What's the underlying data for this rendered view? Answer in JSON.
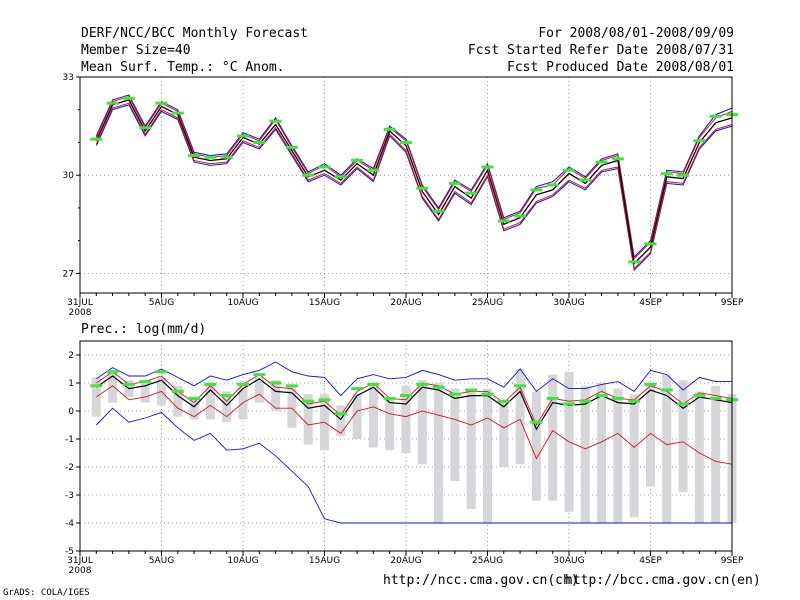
{
  "header": {
    "title": "DERF/NCC/BCC Monthly Forecast",
    "member_size": "Member Size=40",
    "variable": "Mean Surf. Temp.: °C Anom.",
    "period": "For 2008/08/01-2008/09/09",
    "started": "Fcst Started Refer Date 2008/07/31",
    "produced": "Fcst Produced Date 2008/08/01"
  },
  "footer": {
    "url_ncc": "http://ncc.cma.gov.cn(ch)",
    "url_bcc": "http://bcc.cma.gov.cn(en)",
    "credit": "GrADS: COLA/IGES"
  },
  "x_ticks": [
    {
      "day": 0,
      "label": "31JUL",
      "sub": "2008"
    },
    {
      "day": 5,
      "label": "5AUG"
    },
    {
      "day": 10,
      "label": "10AUG"
    },
    {
      "day": 15,
      "label": "15AUG"
    },
    {
      "day": 20,
      "label": "20AUG"
    },
    {
      "day": 25,
      "label": "25AUG"
    },
    {
      "day": 30,
      "label": "30AUG"
    },
    {
      "day": 35,
      "label": "4SEP"
    },
    {
      "day": 40,
      "label": "9SEP"
    }
  ],
  "colors": {
    "bar": "#d6d6da",
    "green": "#3ce63c",
    "mean": "#000000",
    "member": "#d01818",
    "spread": "#1010d8",
    "grid": "#888888"
  },
  "chart_data": [
    {
      "type": "line",
      "title": "Mean Surf. Temp.: °C Anom.",
      "xlim": [
        0,
        40
      ],
      "ylim": [
        26.4,
        33
      ],
      "yticks": [
        27,
        30,
        33
      ],
      "x": [
        1,
        2,
        3,
        4,
        5,
        6,
        7,
        8,
        9,
        10,
        11,
        12,
        13,
        14,
        15,
        16,
        17,
        18,
        19,
        20,
        21,
        22,
        23,
        24,
        25,
        26,
        27,
        28,
        29,
        30,
        31,
        32,
        33,
        34,
        35,
        36,
        37,
        38,
        39,
        40
      ],
      "green": [
        31.1,
        32.2,
        32.35,
        31.45,
        32.2,
        31.9,
        30.6,
        30.55,
        30.55,
        31.2,
        31.0,
        31.65,
        30.85,
        30.0,
        30.25,
        29.95,
        30.45,
        30.15,
        31.4,
        31.0,
        29.6,
        28.9,
        29.75,
        29.45,
        30.25,
        28.6,
        28.75,
        29.55,
        29.7,
        30.15,
        29.85,
        30.4,
        30.5,
        27.35,
        27.9,
        30.05,
        30.0,
        31.05,
        31.8,
        31.85
      ],
      "series": [
        {
          "name": "mean",
          "values": [
            31.05,
            32.15,
            32.3,
            31.35,
            32.1,
            31.85,
            30.55,
            30.45,
            30.5,
            31.15,
            30.95,
            31.55,
            30.75,
            29.95,
            30.15,
            29.85,
            30.35,
            30.0,
            31.35,
            30.9,
            29.5,
            28.8,
            29.65,
            29.3,
            30.15,
            28.5,
            28.7,
            29.4,
            29.55,
            30.05,
            29.75,
            30.3,
            30.45,
            27.3,
            27.8,
            29.95,
            29.9,
            31.0,
            31.6,
            31.75
          ]
        },
        {
          "name": "upper",
          "values": [
            31.15,
            32.25,
            32.4,
            31.45,
            32.2,
            31.95,
            30.65,
            30.55,
            30.6,
            31.25,
            31.05,
            31.7,
            30.85,
            30.05,
            30.3,
            29.95,
            30.45,
            30.15,
            31.45,
            31.05,
            29.65,
            28.95,
            29.8,
            29.5,
            30.3,
            28.65,
            28.85,
            29.6,
            29.7,
            30.2,
            29.9,
            30.45,
            30.6,
            27.45,
            27.95,
            30.1,
            30.05,
            31.15,
            31.75,
            31.95
          ]
        },
        {
          "name": "lower",
          "values": [
            30.95,
            32.05,
            32.2,
            31.25,
            32.0,
            31.75,
            30.45,
            30.35,
            30.4,
            31.05,
            30.85,
            31.45,
            30.65,
            29.85,
            30.05,
            29.75,
            30.25,
            29.85,
            31.25,
            30.75,
            29.35,
            28.65,
            29.5,
            29.15,
            30.0,
            28.35,
            28.55,
            29.2,
            29.4,
            29.85,
            29.6,
            30.15,
            30.25,
            27.15,
            27.65,
            29.8,
            29.75,
            30.85,
            31.4,
            31.55
          ]
        },
        {
          "name": "max",
          "values": [
            31.2,
            32.3,
            32.45,
            31.5,
            32.25,
            32.0,
            30.7,
            30.6,
            30.65,
            31.3,
            31.1,
            31.75,
            30.9,
            30.1,
            30.35,
            30.0,
            30.5,
            30.2,
            31.5,
            31.1,
            29.7,
            29.0,
            29.85,
            29.55,
            30.35,
            28.7,
            28.9,
            29.65,
            29.8,
            30.25,
            29.95,
            30.5,
            30.65,
            27.5,
            28.0,
            30.15,
            30.1,
            31.2,
            31.85,
            32.05
          ]
        },
        {
          "name": "min",
          "values": [
            30.9,
            32.0,
            32.15,
            31.2,
            31.95,
            31.7,
            30.4,
            30.3,
            30.35,
            31.0,
            30.8,
            31.4,
            30.6,
            29.8,
            30.0,
            29.7,
            30.2,
            29.8,
            31.2,
            30.7,
            29.3,
            28.6,
            29.45,
            29.1,
            29.95,
            28.3,
            28.5,
            29.15,
            29.35,
            29.8,
            29.55,
            30.1,
            30.2,
            27.1,
            27.6,
            29.75,
            29.7,
            30.8,
            31.35,
            31.5
          ]
        }
      ]
    },
    {
      "type": "line",
      "title": "Prec.: log(mm/d)",
      "xlim": [
        0,
        40
      ],
      "ylim": [
        -5,
        2.5
      ],
      "yticks": [
        -5,
        -4,
        -3,
        -2,
        -1,
        0,
        1,
        2
      ],
      "x": [
        1,
        2,
        3,
        4,
        5,
        6,
        7,
        8,
        9,
        10,
        11,
        12,
        13,
        14,
        15,
        16,
        17,
        18,
        19,
        20,
        21,
        22,
        23,
        24,
        25,
        26,
        27,
        28,
        29,
        30,
        31,
        32,
        33,
        34,
        35,
        36,
        37,
        38,
        39,
        40
      ],
      "bars": [
        [
          -0.2,
          1.2
        ],
        [
          0.3,
          1.4
        ],
        [
          0.5,
          1.1
        ],
        [
          0.3,
          1.0
        ],
        [
          0.2,
          1.2
        ],
        [
          -0.2,
          0.9
        ],
        [
          -0.3,
          0.5
        ],
        [
          -0.3,
          1.0
        ],
        [
          -0.4,
          0.7
        ],
        [
          -0.3,
          1.0
        ],
        [
          0.3,
          1.2
        ],
        [
          0.0,
          1.1
        ],
        [
          -0.6,
          0.9
        ],
        [
          -1.2,
          0.6
        ],
        [
          -1.4,
          0.6
        ],
        [
          -0.9,
          0.2
        ],
        [
          -1.0,
          0.6
        ],
        [
          -1.3,
          0.9
        ],
        [
          -1.4,
          0.5
        ],
        [
          -1.5,
          0.9
        ],
        [
          -1.9,
          1.1
        ],
        [
          -4.0,
          1.0
        ],
        [
          -2.5,
          0.8
        ],
        [
          -3.5,
          0.8
        ],
        [
          -4.0,
          0.8
        ],
        [
          -2.0,
          0.4
        ],
        [
          -1.9,
          1.5
        ],
        [
          -3.2,
          0.7
        ],
        [
          -3.2,
          1.3
        ],
        [
          -3.6,
          1.4
        ],
        [
          -4.0,
          0.9
        ],
        [
          -4.0,
          1.0
        ],
        [
          -4.0,
          0.8
        ],
        [
          -3.8,
          0.6
        ],
        [
          -2.7,
          1.0
        ],
        [
          -4.0,
          1.3
        ],
        [
          -2.9,
          1.1
        ],
        [
          -4.0,
          0.7
        ],
        [
          -4.0,
          0.9
        ],
        [
          -4.0,
          0.6
        ]
      ],
      "green": [
        0.9,
        1.4,
        0.95,
        1.05,
        1.4,
        0.7,
        0.45,
        0.95,
        0.55,
        0.95,
        1.3,
        1.0,
        0.9,
        0.35,
        0.4,
        -0.1,
        0.8,
        0.95,
        0.45,
        0.55,
        0.95,
        0.85,
        0.6,
        0.75,
        0.6,
        0.35,
        0.9,
        -0.4,
        0.45,
        0.25,
        0.35,
        0.55,
        0.45,
        0.35,
        0.95,
        0.75,
        0.25,
        0.55,
        0.45,
        0.4
      ],
      "series": [
        {
          "name": "mean",
          "values": [
            0.85,
            1.25,
            0.8,
            0.9,
            1.1,
            0.55,
            0.15,
            0.75,
            0.2,
            0.8,
            1.15,
            0.7,
            0.65,
            0.1,
            0.2,
            -0.3,
            0.55,
            0.85,
            0.3,
            0.25,
            0.85,
            0.75,
            0.45,
            0.55,
            0.55,
            0.15,
            0.7,
            -0.65,
            0.3,
            0.2,
            0.25,
            0.55,
            0.3,
            0.25,
            0.75,
            0.55,
            0.1,
            0.5,
            0.4,
            0.3
          ]
        },
        {
          "name": "upper",
          "values": [
            1.0,
            1.4,
            0.95,
            1.05,
            1.25,
            0.7,
            0.3,
            0.9,
            0.35,
            0.95,
            1.3,
            0.85,
            0.8,
            0.25,
            0.35,
            -0.15,
            0.7,
            1.0,
            0.45,
            0.4,
            1.0,
            0.9,
            0.6,
            0.7,
            0.7,
            0.3,
            0.85,
            -0.5,
            0.45,
            0.35,
            0.4,
            0.7,
            0.45,
            0.4,
            0.9,
            0.7,
            0.25,
            0.65,
            0.55,
            0.45
          ]
        },
        {
          "name": "lower",
          "values": [
            0.5,
            0.9,
            0.4,
            0.5,
            0.7,
            0.1,
            -0.2,
            0.2,
            -0.2,
            0.3,
            0.6,
            0.1,
            0.1,
            -0.5,
            -0.4,
            -0.8,
            0.0,
            0.15,
            -0.1,
            -0.2,
            0.0,
            -0.15,
            -0.3,
            -0.5,
            -0.25,
            -0.6,
            -0.3,
            -1.7,
            -0.7,
            -1.1,
            -1.35,
            -1.1,
            -0.8,
            -1.3,
            -0.8,
            -1.2,
            -1.1,
            -1.5,
            -1.8,
            -1.9
          ]
        },
        {
          "name": "max",
          "values": [
            1.15,
            1.55,
            1.25,
            1.25,
            1.5,
            1.2,
            0.9,
            1.25,
            1.1,
            1.3,
            1.45,
            1.75,
            1.4,
            1.25,
            1.2,
            0.55,
            1.15,
            1.3,
            1.15,
            1.2,
            1.45,
            1.3,
            1.1,
            1.15,
            1.15,
            0.85,
            1.5,
            0.7,
            1.15,
            0.8,
            0.8,
            0.95,
            1.05,
            0.7,
            1.45,
            1.3,
            0.75,
            1.2,
            1.05,
            1.05
          ]
        },
        {
          "name": "min",
          "values": [
            -0.5,
            0.1,
            -0.4,
            -0.25,
            -0.05,
            -0.6,
            -1.05,
            -0.8,
            -1.4,
            -1.35,
            -1.15,
            -1.6,
            -2.15,
            -2.7,
            -3.85,
            -4.0,
            -4.0,
            -4.0,
            -4.0,
            -4.0,
            -4.0,
            -4.0,
            -4.0,
            -4.0,
            -4.0,
            -4.0,
            -4.0,
            -4.0,
            -4.0,
            -4.0,
            -4.0,
            -4.0,
            -4.0,
            -4.0,
            -4.0,
            -4.0,
            -4.0,
            -4.0,
            -4.0,
            -4.0
          ]
        }
      ]
    }
  ]
}
